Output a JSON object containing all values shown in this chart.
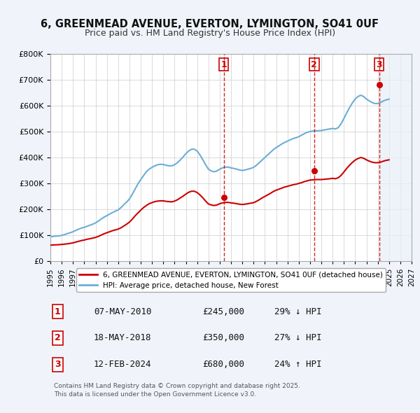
{
  "title": "6, GREENMEAD AVENUE, EVERTON, LYMINGTON, SO41 0UF",
  "subtitle": "Price paid vs. HM Land Registry's House Price Index (HPI)",
  "hpi_color": "#6baed6",
  "price_color": "#cc0000",
  "transaction_color": "#cc0000",
  "background_color": "#f0f4fa",
  "plot_bg_color": "#ffffff",
  "grid_color": "#cccccc",
  "ylim": [
    0,
    800000
  ],
  "xlim": [
    1995,
    2027
  ],
  "transactions": [
    {
      "num": 1,
      "date": "07-MAY-2010",
      "price": 245000,
      "year": 2010.35,
      "hpi_pct": "29% ↓ HPI"
    },
    {
      "num": 2,
      "date": "18-MAY-2018",
      "price": 350000,
      "year": 2018.37,
      "hpi_pct": "27% ↓ HPI"
    },
    {
      "num": 3,
      "date": "12-FEB-2024",
      "price": 680000,
      "year": 2024.12,
      "hpi_pct": "24% ↑ HPI"
    }
  ],
  "legend_line1": "6, GREENMEAD AVENUE, EVERTON, LYMINGTON, SO41 0UF (detached house)",
  "legend_line2": "HPI: Average price, detached house, New Forest",
  "footer": "Contains HM Land Registry data © Crown copyright and database right 2025.\nThis data is licensed under the Open Government Licence v3.0.",
  "hpi_data": {
    "years": [
      1995.0,
      1995.25,
      1995.5,
      1995.75,
      1996.0,
      1996.25,
      1996.5,
      1996.75,
      1997.0,
      1997.25,
      1997.5,
      1997.75,
      1998.0,
      1998.25,
      1998.5,
      1998.75,
      1999.0,
      1999.25,
      1999.5,
      1999.75,
      2000.0,
      2000.25,
      2000.5,
      2000.75,
      2001.0,
      2001.25,
      2001.5,
      2001.75,
      2002.0,
      2002.25,
      2002.5,
      2002.75,
      2003.0,
      2003.25,
      2003.5,
      2003.75,
      2004.0,
      2004.25,
      2004.5,
      2004.75,
      2005.0,
      2005.25,
      2005.5,
      2005.75,
      2006.0,
      2006.25,
      2006.5,
      2006.75,
      2007.0,
      2007.25,
      2007.5,
      2007.75,
      2008.0,
      2008.25,
      2008.5,
      2008.75,
      2009.0,
      2009.25,
      2009.5,
      2009.75,
      2010.0,
      2010.25,
      2010.5,
      2010.75,
      2011.0,
      2011.25,
      2011.5,
      2011.75,
      2012.0,
      2012.25,
      2012.5,
      2012.75,
      2013.0,
      2013.25,
      2013.5,
      2013.75,
      2014.0,
      2014.25,
      2014.5,
      2014.75,
      2015.0,
      2015.25,
      2015.5,
      2015.75,
      2016.0,
      2016.25,
      2016.5,
      2016.75,
      2017.0,
      2017.25,
      2017.5,
      2017.75,
      2018.0,
      2018.25,
      2018.5,
      2018.75,
      2019.0,
      2019.25,
      2019.5,
      2019.75,
      2020.0,
      2020.25,
      2020.5,
      2020.75,
      2021.0,
      2021.25,
      2021.5,
      2021.75,
      2022.0,
      2022.25,
      2022.5,
      2022.75,
      2023.0,
      2023.25,
      2023.5,
      2023.75,
      2024.0,
      2024.25,
      2024.5,
      2024.75,
      2025.0
    ],
    "values": [
      95000,
      96000,
      97000,
      98000,
      100000,
      103000,
      107000,
      110000,
      114000,
      119000,
      124000,
      128000,
      131000,
      135000,
      139000,
      143000,
      148000,
      155000,
      163000,
      170000,
      176000,
      182000,
      188000,
      193000,
      198000,
      207000,
      218000,
      228000,
      240000,
      258000,
      278000,
      298000,
      315000,
      330000,
      345000,
      355000,
      362000,
      368000,
      372000,
      374000,
      373000,
      370000,
      368000,
      368000,
      372000,
      380000,
      390000,
      402000,
      415000,
      425000,
      432000,
      432000,
      425000,
      410000,
      392000,
      372000,
      355000,
      348000,
      345000,
      348000,
      355000,
      360000,
      363000,
      363000,
      360000,
      358000,
      355000,
      352000,
      350000,
      352000,
      355000,
      358000,
      362000,
      370000,
      380000,
      390000,
      400000,
      410000,
      420000,
      430000,
      438000,
      445000,
      452000,
      458000,
      463000,
      468000,
      473000,
      476000,
      480000,
      486000,
      492000,
      497000,
      500000,
      502000,
      503000,
      503000,
      504000,
      506000,
      508000,
      510000,
      512000,
      510000,
      515000,
      530000,
      550000,
      572000,
      592000,
      610000,
      625000,
      635000,
      640000,
      635000,
      625000,
      618000,
      612000,
      608000,
      608000,
      612000,
      618000,
      622000,
      625000
    ]
  },
  "price_data": {
    "years": [
      1995.0,
      1995.25,
      1995.5,
      1995.75,
      1996.0,
      1996.25,
      1996.5,
      1996.75,
      1997.0,
      1997.25,
      1997.5,
      1997.75,
      1998.0,
      1998.25,
      1998.5,
      1998.75,
      1999.0,
      1999.25,
      1999.5,
      1999.75,
      2000.0,
      2000.25,
      2000.5,
      2000.75,
      2001.0,
      2001.25,
      2001.5,
      2001.75,
      2002.0,
      2002.25,
      2002.5,
      2002.75,
      2003.0,
      2003.25,
      2003.5,
      2003.75,
      2004.0,
      2004.25,
      2004.5,
      2004.75,
      2005.0,
      2005.25,
      2005.5,
      2005.75,
      2006.0,
      2006.25,
      2006.5,
      2006.75,
      2007.0,
      2007.25,
      2007.5,
      2007.75,
      2008.0,
      2008.25,
      2008.5,
      2008.75,
      2009.0,
      2009.25,
      2009.5,
      2009.75,
      2010.0,
      2010.25,
      2010.5,
      2010.75,
      2011.0,
      2011.25,
      2011.5,
      2011.75,
      2012.0,
      2012.25,
      2012.5,
      2012.75,
      2013.0,
      2013.25,
      2013.5,
      2013.75,
      2014.0,
      2014.25,
      2014.5,
      2014.75,
      2015.0,
      2015.25,
      2015.5,
      2015.75,
      2016.0,
      2016.25,
      2016.5,
      2016.75,
      2017.0,
      2017.25,
      2017.5,
      2017.75,
      2018.0,
      2018.25,
      2018.5,
      2018.75,
      2019.0,
      2019.25,
      2019.5,
      2019.75,
      2020.0,
      2020.25,
      2020.5,
      2020.75,
      2021.0,
      2021.25,
      2021.5,
      2021.75,
      2022.0,
      2022.25,
      2022.5,
      2022.75,
      2023.0,
      2023.25,
      2023.5,
      2023.75,
      2024.0,
      2024.25,
      2024.5,
      2024.75,
      2025.0
    ],
    "values": [
      62000,
      63000,
      63500,
      64000,
      65000,
      66000,
      67500,
      69000,
      71000,
      74000,
      77000,
      80000,
      82000,
      85000,
      87000,
      89500,
      92000,
      96000,
      101000,
      106000,
      110000,
      114000,
      118000,
      121000,
      124000,
      129000,
      136000,
      143000,
      151000,
      162000,
      175000,
      186000,
      197000,
      207000,
      215000,
      222000,
      226000,
      230000,
      232000,
      233000,
      233000,
      231000,
      230000,
      229000,
      232000,
      237000,
      244000,
      251000,
      259000,
      266000,
      270000,
      270000,
      265000,
      256000,
      245000,
      232000,
      221000,
      217000,
      215000,
      217000,
      222000,
      225000,
      227000,
      227000,
      225000,
      224000,
      222000,
      220000,
      219000,
      220000,
      222000,
      224000,
      226000,
      231000,
      237000,
      244000,
      250000,
      256000,
      262000,
      269000,
      274000,
      278000,
      282000,
      286000,
      289000,
      292000,
      295000,
      297000,
      300000,
      303000,
      307000,
      310000,
      313000,
      314000,
      315000,
      315000,
      315000,
      316000,
      317000,
      318000,
      320000,
      318000,
      322000,
      331000,
      344000,
      358000,
      370000,
      381000,
      390000,
      396000,
      400000,
      397000,
      391000,
      386000,
      382000,
      380000,
      380000,
      382000,
      386000,
      389000,
      391000
    ]
  }
}
